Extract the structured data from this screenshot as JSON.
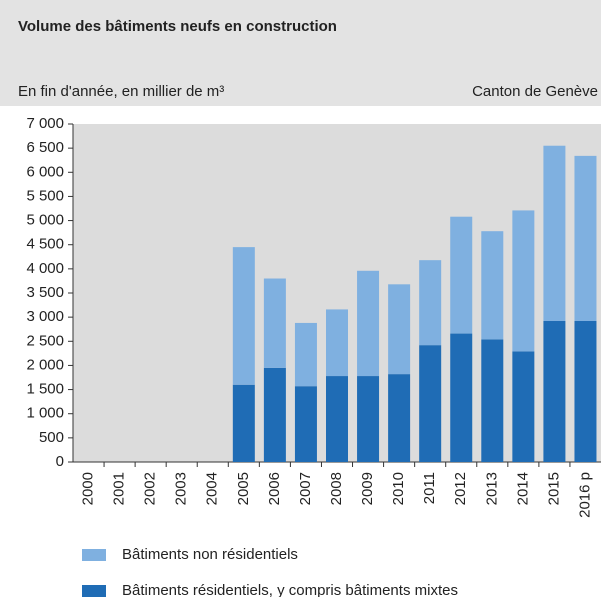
{
  "chart_data": {
    "type": "stacked_bar",
    "title": "Volume des bâtiments neufs en construction",
    "subtitle": "En fin d'année, en millier de m³",
    "source": "Canton de Genève",
    "categories": [
      "2000",
      "2001",
      "2002",
      "2003",
      "2004",
      "2005",
      "2006",
      "2007",
      "2008",
      "2009",
      "2010",
      "2011",
      "2012",
      "2013",
      "2014",
      "2015",
      "2016 p"
    ],
    "series": [
      {
        "name": "Bâtiments résidentiels, y compris bâtiments mixtes",
        "color": "#1f6cb5",
        "values": [
          null,
          null,
          null,
          null,
          null,
          1600,
          1950,
          1570,
          1780,
          1780,
          1820,
          2420,
          2660,
          2540,
          2290,
          2920,
          2920
        ]
      },
      {
        "name": "Bâtiments non résidentiels",
        "color": "#7fb0e0",
        "values": [
          null,
          null,
          null,
          null,
          null,
          2850,
          1850,
          1310,
          1380,
          2180,
          1860,
          1760,
          2420,
          2240,
          2920,
          3630,
          3420
        ]
      }
    ],
    "ylim": [
      0,
      7000
    ],
    "yticks": [
      0,
      500,
      {
        "value": 1000,
        "label": "1 000"
      },
      {
        "value": 1500,
        "label": "1 500"
      },
      {
        "value": 2000,
        "label": "2 000"
      },
      {
        "value": 2500,
        "label": "2 500"
      },
      {
        "value": 3000,
        "label": "3 000"
      },
      {
        "value": 3500,
        "label": "3 500"
      },
      {
        "value": 4000,
        "label": "4 000"
      },
      {
        "value": 4500,
        "label": "4 500"
      },
      {
        "value": 5000,
        "label": "5 000"
      },
      {
        "value": 5500,
        "label": "5 500"
      },
      {
        "value": 6000,
        "label": "6 000"
      },
      {
        "value": 6500,
        "label": "6 500"
      },
      {
        "value": 7000,
        "label": "7 000"
      }
    ]
  }
}
